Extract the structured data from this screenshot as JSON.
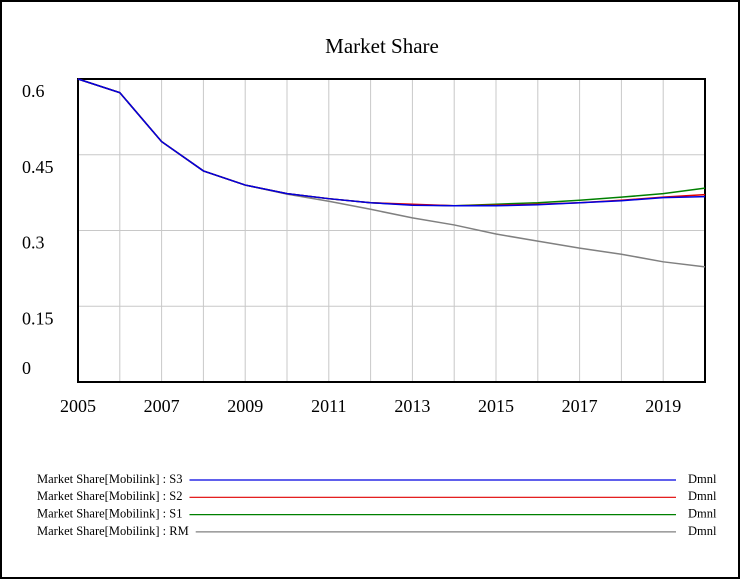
{
  "chart_data": {
    "type": "line",
    "title": "Market Share",
    "x": [
      2005,
      2006,
      2007,
      2008,
      2009,
      2010,
      2011,
      2012,
      2013,
      2014,
      2015,
      2016,
      2017,
      2018,
      2019,
      2020
    ],
    "xlim": [
      2005,
      2020
    ],
    "xticks": [
      2005,
      2007,
      2009,
      2011,
      2013,
      2015,
      2017,
      2019
    ],
    "xgrid_step": 1,
    "ylim": [
      0,
      0.6
    ],
    "yticks": [
      0,
      0.15,
      0.3,
      0.45,
      0.6
    ],
    "grid": true,
    "legend": "bottom",
    "series": [
      {
        "name": "Market Share[Mobilink] : S3",
        "unit": "Dmnl",
        "color": "#0000e0",
        "values": [
          0.6,
          0.573,
          0.476,
          0.418,
          0.39,
          0.373,
          0.363,
          0.355,
          0.35,
          0.349,
          0.349,
          0.351,
          0.355,
          0.359,
          0.365,
          0.367
        ]
      },
      {
        "name": "Market Share[Mobilink] : S2",
        "unit": "Dmnl",
        "color": "#e00000",
        "values": [
          0.6,
          0.573,
          0.476,
          0.418,
          0.39,
          0.373,
          0.363,
          0.355,
          0.352,
          0.349,
          0.35,
          0.352,
          0.355,
          0.36,
          0.366,
          0.371
        ]
      },
      {
        "name": "Market Share[Mobilink] : S1",
        "unit": "Dmnl",
        "color": "#008000",
        "values": [
          0.6,
          0.573,
          0.476,
          0.418,
          0.39,
          0.373,
          0.363,
          0.355,
          0.351,
          0.349,
          0.352,
          0.355,
          0.36,
          0.366,
          0.373,
          0.384
        ]
      },
      {
        "name": "Market Share[Mobilink] : RM",
        "unit": "Dmnl",
        "color": "#808080",
        "values": [
          0.6,
          0.573,
          0.476,
          0.418,
          0.39,
          0.372,
          0.358,
          0.342,
          0.325,
          0.311,
          0.293,
          0.279,
          0.265,
          0.253,
          0.238,
          0.228
        ]
      }
    ]
  }
}
